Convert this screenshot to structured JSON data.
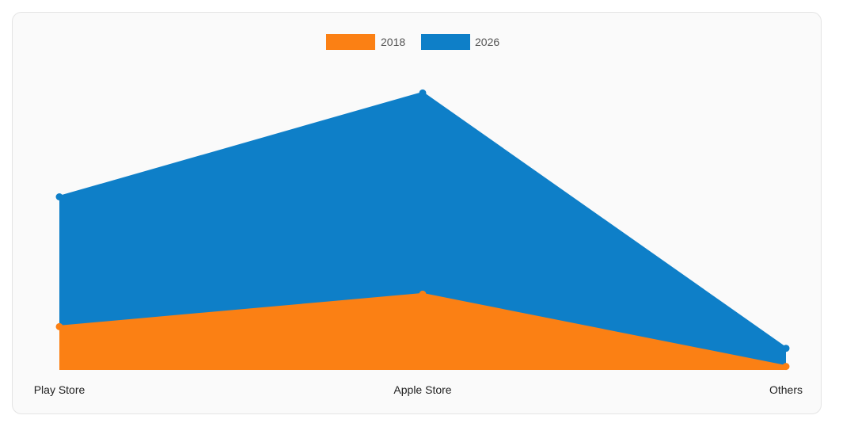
{
  "chart_data": {
    "type": "area",
    "categories": [
      "Play Store",
      "Apple Store",
      "Others"
    ],
    "series": [
      {
        "name": "2018",
        "values": [
          10,
          17.5,
          0.8
        ],
        "color": "#fb8014"
      },
      {
        "name": "2026",
        "values": [
          40,
          64,
          5
        ],
        "color": "#0e7fc8"
      }
    ],
    "ylim": [
      0,
      80
    ],
    "grid": false,
    "legend_position": "top-center",
    "stacked": false
  }
}
